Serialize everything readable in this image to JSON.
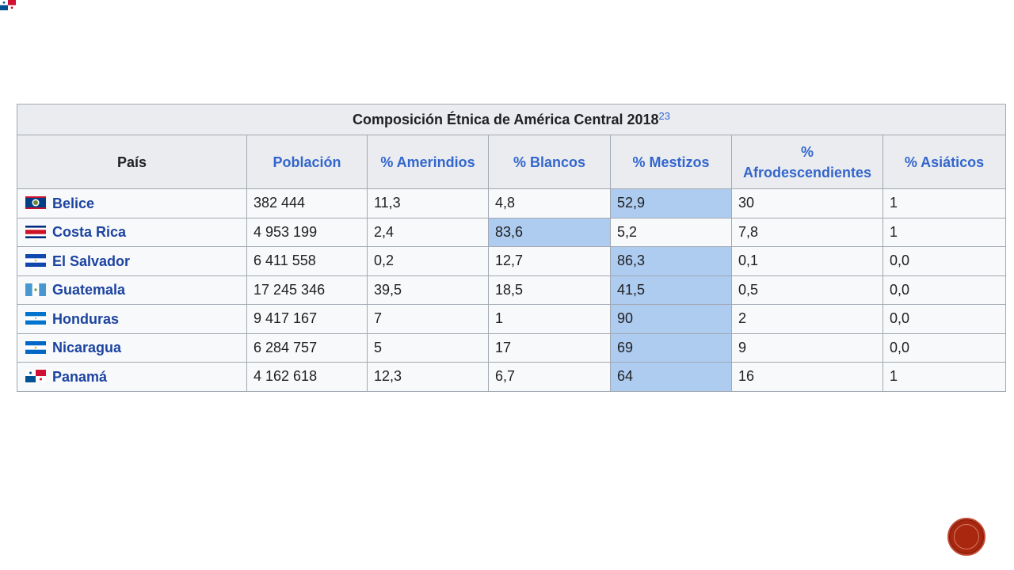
{
  "table": {
    "title": "Composición Étnica de América Central 2018",
    "title_ref": "23",
    "columns": [
      "País",
      "Población",
      "% Amerindios",
      "% Blancos",
      "% Mestizos",
      "% Afrodescendientes",
      "% Asiáticos"
    ],
    "rows": [
      {
        "country": "Belice",
        "flag": "belize-flag-icon",
        "poblacion": "382 444",
        "amerindios": "11,3",
        "blancos": "4,8",
        "mestizos": "52,9",
        "afro": "30",
        "asiaticos": "1",
        "highlight": "mestizos"
      },
      {
        "country": "Costa Rica",
        "flag": "costa-rica-flag-icon",
        "poblacion": "4 953 199",
        "amerindios": "2,4",
        "blancos": "83,6",
        "mestizos": "5,2",
        "afro": "7,8",
        "asiaticos": "1",
        "highlight": "blancos"
      },
      {
        "country": "El Salvador",
        "flag": "el-salvador-flag-icon",
        "poblacion": "6 411 558",
        "amerindios": "0,2",
        "blancos": "12,7",
        "mestizos": "86,3",
        "afro": "0,1",
        "asiaticos": "0,0",
        "highlight": "mestizos"
      },
      {
        "country": "Guatemala",
        "flag": "guatemala-flag-icon",
        "poblacion": "17 245 346",
        "amerindios": "39,5",
        "blancos": "18,5",
        "mestizos": "41,5",
        "afro": "0,5",
        "asiaticos": "0,0",
        "highlight": "mestizos"
      },
      {
        "country": "Honduras",
        "flag": "honduras-flag-icon",
        "poblacion": "9 417 167",
        "amerindios": "7",
        "blancos": "1",
        "mestizos": "90",
        "afro": "2",
        "asiaticos": "0,0",
        "highlight": "mestizos"
      },
      {
        "country": "Nicaragua",
        "flag": "nicaragua-flag-icon",
        "poblacion": "6 284 757",
        "amerindios": "5",
        "blancos": "17",
        "mestizos": "69",
        "afro": "9",
        "asiaticos": "0,0",
        "highlight": "mestizos"
      },
      {
        "country": "Panamá",
        "flag": "panama-flag-icon",
        "poblacion": "4 162 618",
        "amerindios": "12,3",
        "blancos": "6,7",
        "mestizos": "64",
        "afro": "16",
        "asiaticos": "1",
        "highlight": "mestizos"
      }
    ]
  },
  "colors": {
    "header_bg": "#eaecf0",
    "link": "#3366cc",
    "highlight": "#aecbf0",
    "nav_button": "#a8270e"
  },
  "icons": [
    "panama-flag-icon",
    "next-slide-button"
  ]
}
